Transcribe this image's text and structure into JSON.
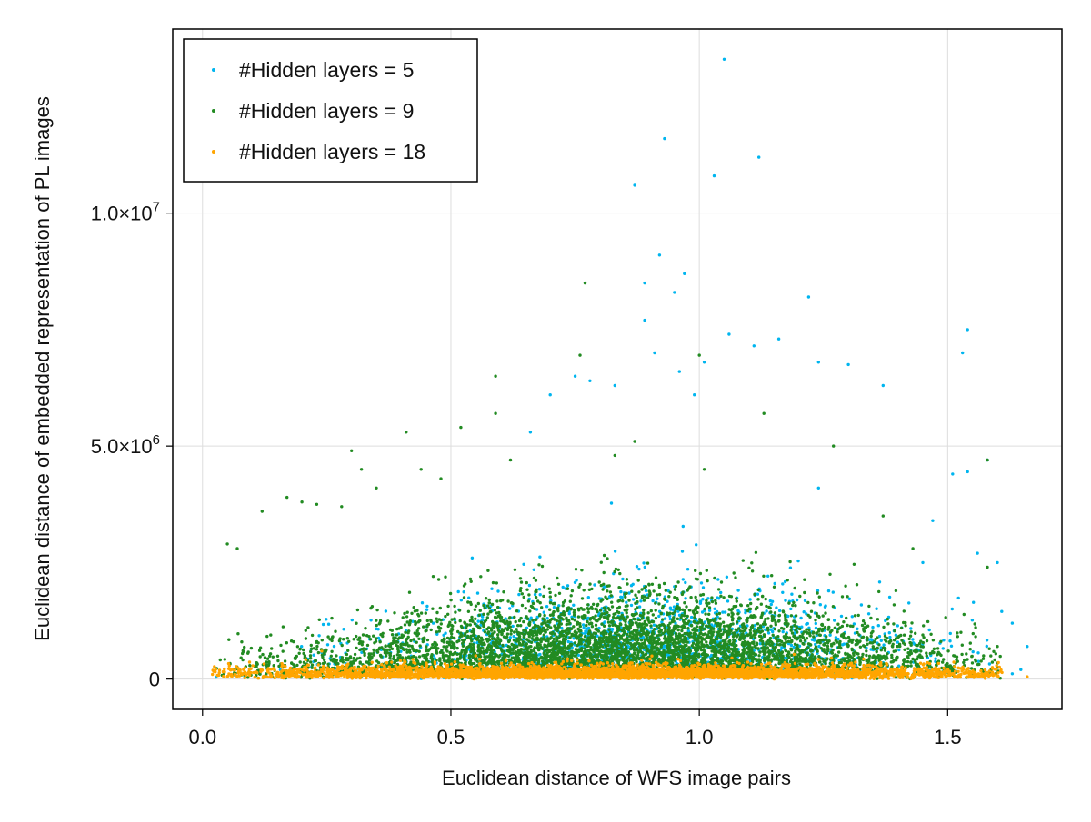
{
  "chart_data": {
    "type": "scatter",
    "title": "",
    "xlabel": "Euclidean distance of WFS image pairs",
    "ylabel": "Euclidean distance of embedded representation of PL images",
    "xlim": [
      -0.06,
      1.73
    ],
    "ylim": [
      -650000,
      13950000
    ],
    "x_ticks": [
      0.0,
      0.5,
      1.0,
      1.5
    ],
    "x_tick_labels": [
      "0.0",
      "0.5",
      "1.0",
      "1.5"
    ],
    "y_ticks": [
      0,
      5000000,
      10000000
    ],
    "y_tick_labels": [
      {
        "mantissa": "0",
        "exponent": ""
      },
      {
        "mantissa": "5.0×10",
        "exponent": "6"
      },
      {
        "mantissa": "1.0×10",
        "exponent": "7"
      }
    ],
    "grid": true,
    "legend_position": "top-left",
    "series": [
      {
        "name": "#Hidden layers = 5",
        "color": "#00b5ef",
        "outliers": [
          [
            1.05,
            13300000
          ],
          [
            0.93,
            11600000
          ],
          [
            1.12,
            11200000
          ],
          [
            1.03,
            10800000
          ],
          [
            0.87,
            10600000
          ],
          [
            0.92,
            9100000
          ],
          [
            0.97,
            8700000
          ],
          [
            0.89,
            8500000
          ],
          [
            1.22,
            8200000
          ],
          [
            0.95,
            8300000
          ],
          [
            1.54,
            7500000
          ],
          [
            1.53,
            7000000
          ],
          [
            0.89,
            7700000
          ],
          [
            1.06,
            7400000
          ],
          [
            1.16,
            7300000
          ],
          [
            1.11,
            7150000
          ],
          [
            1.01,
            6800000
          ],
          [
            1.24,
            6800000
          ],
          [
            1.3,
            6750000
          ],
          [
            1.37,
            6300000
          ],
          [
            0.78,
            6400000
          ],
          [
            1.58,
            4700000
          ],
          [
            1.51,
            4400000
          ],
          [
            1.54,
            4450000
          ],
          [
            1.24,
            4100000
          ],
          [
            0.96,
            6600000
          ],
          [
            0.83,
            6300000
          ],
          [
            0.91,
            7000000
          ],
          [
            1.47,
            3400000
          ],
          [
            1.56,
            2700000
          ],
          [
            1.6,
            2500000
          ],
          [
            1.63,
            1200000
          ],
          [
            1.66,
            700000
          ],
          [
            1.45,
            2500000
          ],
          [
            0.66,
            5300000
          ],
          [
            0.7,
            6100000
          ],
          [
            0.75,
            6500000
          ],
          [
            0.99,
            6100000
          ]
        ],
        "cloud": {
          "x_center": 0.9,
          "x_spread": 0.28,
          "x_min": 0.02,
          "x_max": 1.66,
          "y_typical": 1000000,
          "y_spread": 900000,
          "n_points": 1500
        }
      },
      {
        "name": "#Hidden layers = 9",
        "color": "#228b22",
        "outliers": [
          [
            0.77,
            8500000
          ],
          [
            0.76,
            6950000
          ],
          [
            1.0,
            6950000
          ],
          [
            0.59,
            6500000
          ],
          [
            0.59,
            5700000
          ],
          [
            0.52,
            5400000
          ],
          [
            0.41,
            5300000
          ],
          [
            1.13,
            5700000
          ],
          [
            1.58,
            4700000
          ],
          [
            1.27,
            5000000
          ],
          [
            0.3,
            4900000
          ],
          [
            0.17,
            3900000
          ],
          [
            0.07,
            2800000
          ],
          [
            0.23,
            3750000
          ],
          [
            0.2,
            3800000
          ],
          [
            0.28,
            3700000
          ],
          [
            0.12,
            3600000
          ],
          [
            0.05,
            2900000
          ],
          [
            0.32,
            4500000
          ],
          [
            0.44,
            4500000
          ],
          [
            0.35,
            4100000
          ],
          [
            1.58,
            2400000
          ],
          [
            1.6,
            700000
          ],
          [
            1.37,
            3500000
          ],
          [
            1.43,
            2800000
          ],
          [
            0.48,
            4300000
          ],
          [
            0.62,
            4700000
          ],
          [
            0.83,
            4800000
          ],
          [
            0.87,
            5100000
          ],
          [
            1.01,
            4500000
          ]
        ],
        "cloud": {
          "x_center": 0.85,
          "x_spread": 0.33,
          "x_min": 0.02,
          "x_max": 1.61,
          "y_typical": 800000,
          "y_spread": 800000,
          "n_points": 5200
        }
      },
      {
        "name": "#Hidden layers = 18",
        "color": "#ffa500",
        "outliers": [
          [
            1.66,
            50000
          ],
          [
            0.24,
            600000
          ],
          [
            0.55,
            500000
          ],
          [
            0.02,
            100000
          ],
          [
            1.59,
            250000
          ]
        ],
        "cloud": {
          "x_center": 0.85,
          "x_spread": 0.38,
          "x_min": 0.02,
          "x_max": 1.61,
          "y_typical": 150000,
          "y_spread": 120000,
          "n_points": 4500
        }
      }
    ]
  }
}
